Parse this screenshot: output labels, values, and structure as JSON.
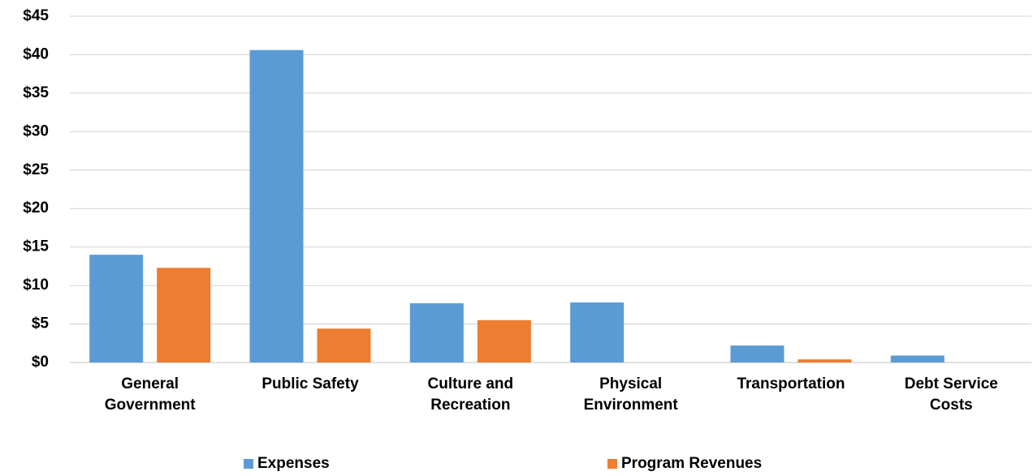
{
  "chart_data": {
    "type": "bar",
    "categories": [
      "General Government",
      "Public Safety",
      "Culture and Recreation",
      "Physical Environment",
      "Transportation",
      "Debt Service Costs"
    ],
    "series": [
      {
        "name": "Expenses",
        "color": "#5b9bd5",
        "values": [
          14.0,
          40.6,
          7.7,
          7.8,
          2.2,
          0.9
        ]
      },
      {
        "name": "Program Revenues",
        "color": "#ed7d31",
        "values": [
          12.3,
          4.4,
          5.5,
          0,
          0.4,
          0
        ]
      }
    ],
    "ylim": [
      0,
      45
    ],
    "yticks": [
      {
        "value": 0,
        "label": "$0"
      },
      {
        "value": 5,
        "label": "$5"
      },
      {
        "value": 10,
        "label": "$10"
      },
      {
        "value": 15,
        "label": "$15"
      },
      {
        "value": 20,
        "label": "$20"
      },
      {
        "value": 25,
        "label": "$25"
      },
      {
        "value": 30,
        "label": "$30"
      },
      {
        "value": 35,
        "label": "$35"
      },
      {
        "value": 40,
        "label": "$40"
      },
      {
        "value": 45,
        "label": "$45"
      }
    ],
    "grid": true,
    "legend": "bottom"
  }
}
